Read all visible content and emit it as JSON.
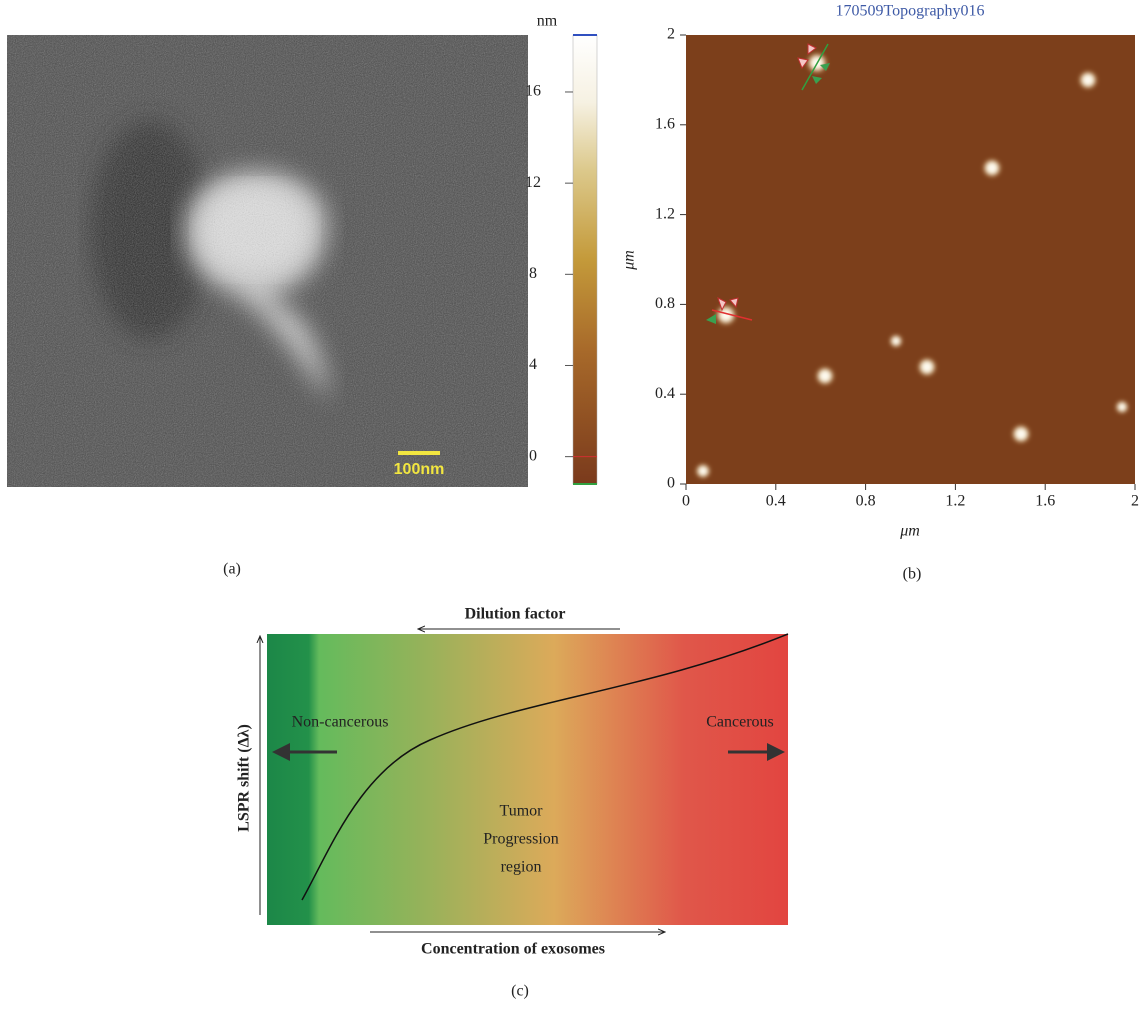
{
  "panel_a": {
    "scale_bar": "100nm",
    "colorbar": {
      "unit": "nm",
      "range": [
        -1.2,
        18.5
      ],
      "ticks": [
        0,
        4,
        8,
        12,
        16
      ]
    },
    "caption": "(a)"
  },
  "panel_b": {
    "title": "170509Topography016",
    "x_label": "μm",
    "y_label": "μm",
    "xlim": [
      0,
      2
    ],
    "ylim": [
      0,
      2
    ],
    "xticks": [
      0,
      0.4,
      0.8,
      1.2,
      1.6,
      2
    ],
    "yticks": [
      0,
      0.4,
      0.8,
      1.2,
      1.6,
      2
    ],
    "caption": "(b)"
  },
  "panel_c": {
    "top_arrow": "Dilution factor",
    "y_label": "LSPR shift (Δλ)",
    "left_label": "Non-cancerous",
    "right_label": "Cancerous",
    "center_label": [
      "Tumor",
      "Progression",
      "region"
    ],
    "bottom_arrow": "Concentration of exosomes",
    "caption": "(c)"
  }
}
